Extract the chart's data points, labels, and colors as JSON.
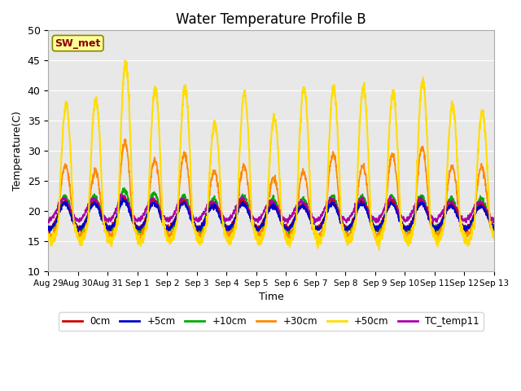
{
  "title": "Water Temperature Profile B",
  "xlabel": "Time",
  "ylabel": "Temperature(C)",
  "ylim": [
    10,
    50
  ],
  "background_color": "#ffffff",
  "plot_bg_color": "#e8e8e8",
  "grid_color": "#ffffff",
  "series": {
    "0cm": {
      "color": "#cc0000",
      "lw": 1.2
    },
    "+5cm": {
      "color": "#0000cc",
      "lw": 1.2
    },
    "+10cm": {
      "color": "#00aa00",
      "lw": 1.2
    },
    "+30cm": {
      "color": "#ff8800",
      "lw": 1.2
    },
    "+50cm": {
      "color": "#ffdd00",
      "lw": 1.5
    },
    "TC_temp11": {
      "color": "#aa00aa",
      "lw": 1.2
    }
  },
  "annotation_text": "SW_met",
  "annotation_color": "#880000",
  "annotation_bg": "#ffff99",
  "annotation_border": "#888800",
  "tick_labels": [
    "Aug 29",
    "Aug 30",
    "Aug 31",
    "Sep 1",
    "Sep 2",
    "Sep 3",
    "Sep 4",
    "Sep 5",
    "Sep 6",
    "Sep 7",
    "Sep 8",
    "Sep 9",
    "Sep 10",
    "Sep 11",
    "Sep 12",
    "Sep 13"
  ],
  "num_days": 15
}
